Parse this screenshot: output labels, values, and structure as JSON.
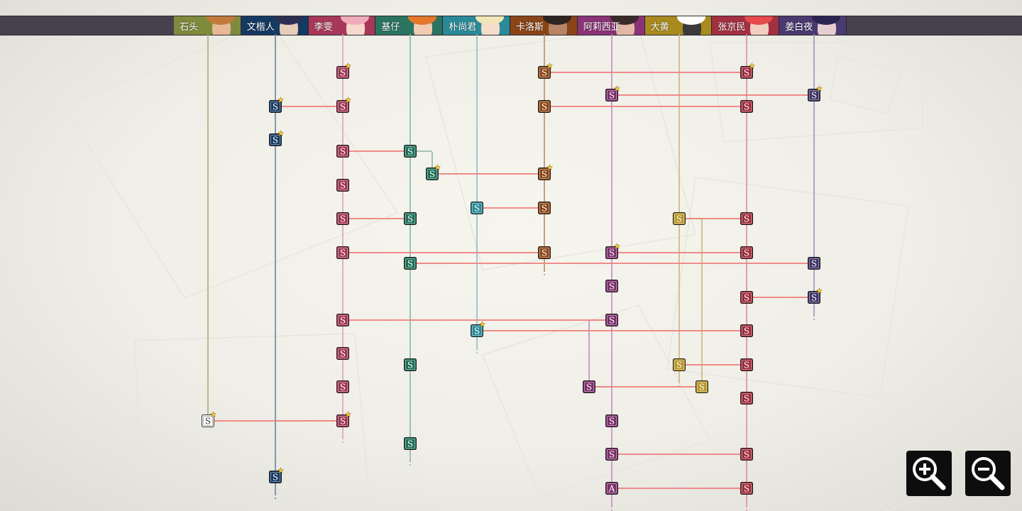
{
  "characters": [
    {
      "id": "c0",
      "name": "石头",
      "tab": "#7f8a3c",
      "line": "#a7ad74",
      "node": "#ffffff",
      "hair": "#c07a3a",
      "skin": "#e6b896"
    },
    {
      "id": "c1",
      "name": "文楷人",
      "tab": "#153a62",
      "line": "#6f8299",
      "node": "#153a62",
      "hair": "#2c2f52",
      "skin": "#e9cdbb"
    },
    {
      "id": "c2",
      "name": "李雯",
      "tab": "#a8385a",
      "line": "#d9a4b3",
      "node": "#9f3553",
      "hair": "#f0aab8",
      "skin": "#f6d8cf"
    },
    {
      "id": "c3",
      "name": "基仔",
      "tab": "#2a7460",
      "line": "#84b8a8",
      "node": "#1f6e57",
      "hair": "#e3772a",
      "skin": "#f0cdb1"
    },
    {
      "id": "c4",
      "name": "朴尚君",
      "tab": "#2a8a97",
      "line": "#8ac0c2",
      "node": "#2a8a97",
      "hair": "#f1e6b8",
      "skin": "#f4dcca"
    },
    {
      "id": "c5",
      "name": "卡洛斯",
      "tab": "#8a4517",
      "line": "#b48e6a",
      "node": "#8a4517",
      "hair": "#2e2420",
      "skin": "#b88466"
    },
    {
      "id": "c6",
      "name": "阿莉西亚",
      "tab": "#8a3477",
      "line": "#c38cbd",
      "node": "#7b2f6c",
      "hair": "#3a2a2a",
      "skin": "#e3b9a6"
    },
    {
      "id": "c7",
      "name": "大黄",
      "tab": "#a88a1e",
      "line": "#cfb478",
      "node": "#b8962a",
      "hair": "#ffffff",
      "skin": "#3b3a3a"
    },
    {
      "id": "c8",
      "name": "张京民",
      "tab": "#a33040",
      "line": "#da8f98",
      "node": "#9c2b3b",
      "hair": "#e64a4a",
      "skin": "#f2cfc0"
    },
    {
      "id": "c9",
      "name": "姜白夜",
      "tab": "#4a3a70",
      "line": "#9a91bb",
      "node": "#3d3366",
      "hair": "#2a2450",
      "skin": "#e6cdd0"
    }
  ],
  "nodes": [
    {
      "c": 2,
      "row": 102,
      "label": "S",
      "star": true
    },
    {
      "c": 5,
      "row": 102,
      "label": "S",
      "star": true
    },
    {
      "c": 8,
      "row": 102,
      "label": "S",
      "star": true
    },
    {
      "c": 6,
      "row": 134,
      "label": "S",
      "star": true
    },
    {
      "c": 9,
      "row": 134,
      "label": "S",
      "star": true
    },
    {
      "c": 1,
      "row": 150,
      "label": "S",
      "star": true
    },
    {
      "c": 2,
      "row": 150,
      "label": "S",
      "star": true
    },
    {
      "c": 5,
      "row": 150,
      "label": "S",
      "star": false
    },
    {
      "c": 8,
      "row": 150,
      "label": "S",
      "star": false
    },
    {
      "c": 1,
      "row": 197,
      "label": "S",
      "star": true
    },
    {
      "c": 2,
      "row": 213,
      "label": "S",
      "star": false
    },
    {
      "c": 3,
      "row": 213,
      "label": "S",
      "star": false
    },
    {
      "c": 3,
      "row": 245,
      "label": "S",
      "star": true,
      "branch": true
    },
    {
      "c": 5,
      "row": 245,
      "label": "S",
      "star": true
    },
    {
      "c": 2,
      "row": 261,
      "label": "S",
      "star": false
    },
    {
      "c": 4,
      "row": 293,
      "label": "S",
      "star": false
    },
    {
      "c": 5,
      "row": 293,
      "label": "S",
      "star": false
    },
    {
      "c": 2,
      "row": 308,
      "label": "S",
      "star": false
    },
    {
      "c": 3,
      "row": 308,
      "label": "S",
      "star": false
    },
    {
      "c": 7,
      "row": 308,
      "label": "S",
      "star": false
    },
    {
      "c": 8,
      "row": 308,
      "label": "S",
      "star": false
    },
    {
      "c": 2,
      "row": 356,
      "label": "S",
      "star": false
    },
    {
      "c": 5,
      "row": 356,
      "label": "S",
      "star": false
    },
    {
      "c": 6,
      "row": 356,
      "label": "S",
      "star": true
    },
    {
      "c": 8,
      "row": 356,
      "label": "S",
      "star": false
    },
    {
      "c": 3,
      "row": 371,
      "label": "S",
      "star": false
    },
    {
      "c": 9,
      "row": 371,
      "label": "S",
      "star": false
    },
    {
      "c": 6,
      "row": 403,
      "label": "S",
      "star": false
    },
    {
      "c": 8,
      "row": 419,
      "label": "S",
      "star": false
    },
    {
      "c": 9,
      "row": 419,
      "label": "S",
      "star": true
    },
    {
      "c": 2,
      "row": 451,
      "label": "S",
      "star": false
    },
    {
      "c": 6,
      "row": 451,
      "label": "S",
      "star": false
    },
    {
      "c": 4,
      "row": 466,
      "label": "S",
      "star": true
    },
    {
      "c": 8,
      "row": 466,
      "label": "S",
      "star": false
    },
    {
      "c": 2,
      "row": 498,
      "label": "S",
      "star": false
    },
    {
      "c": 3,
      "row": 514,
      "label": "S",
      "star": false
    },
    {
      "c": 7,
      "row": 514,
      "label": "S",
      "star": false
    },
    {
      "c": 8,
      "row": 514,
      "label": "S",
      "star": false
    },
    {
      "c": 2,
      "row": 545,
      "label": "S",
      "star": false
    },
    {
      "c": 6,
      "row": 545,
      "label": "S",
      "star": false,
      "branch": true
    },
    {
      "c": 7,
      "row": 545,
      "label": "S",
      "star": false,
      "branch": true
    },
    {
      "c": 8,
      "row": 561,
      "label": "S",
      "star": false
    },
    {
      "c": 0,
      "row": 593,
      "label": "S",
      "star": true
    },
    {
      "c": 2,
      "row": 593,
      "label": "S",
      "star": true
    },
    {
      "c": 6,
      "row": 593,
      "label": "S",
      "star": false
    },
    {
      "c": 3,
      "row": 625,
      "label": "S",
      "star": false
    },
    {
      "c": 6,
      "row": 640,
      "label": "S",
      "star": false
    },
    {
      "c": 8,
      "row": 640,
      "label": "S",
      "star": false
    },
    {
      "c": 1,
      "row": 672,
      "label": "S",
      "star": true
    },
    {
      "c": 6,
      "row": 688,
      "label": "A",
      "star": false
    },
    {
      "c": 8,
      "row": 688,
      "label": "S",
      "star": false
    }
  ],
  "links": [
    {
      "a": 5,
      "b": 8,
      "row": 102
    },
    {
      "a": 6,
      "b": 9,
      "row": 134
    },
    {
      "a": 1,
      "b": 2,
      "row": 150
    },
    {
      "a": 5,
      "b": 8,
      "row": 150
    },
    {
      "a": 2,
      "b": 3,
      "row": 213
    },
    {
      "a": 3,
      "b": 5,
      "row": 245,
      "aBranch": true
    },
    {
      "a": 4,
      "b": 5,
      "row": 293
    },
    {
      "a": 2,
      "b": 3,
      "row": 308
    },
    {
      "a": 7,
      "b": 8,
      "row": 308
    },
    {
      "a": 2,
      "b": 5,
      "row": 356
    },
    {
      "a": 6,
      "b": 8,
      "row": 356
    },
    {
      "a": 3,
      "b": 9,
      "row": 371
    },
    {
      "a": 8,
      "b": 9,
      "row": 419
    },
    {
      "a": 2,
      "b": 6,
      "row": 451
    },
    {
      "a": 4,
      "b": 8,
      "row": 466
    },
    {
      "a": 7,
      "b": 8,
      "row": 514
    },
    {
      "a": 6,
      "b": 7,
      "row": 545,
      "aBranch": true,
      "bBranch": true
    },
    {
      "a": 0,
      "b": 2,
      "row": 593
    },
    {
      "a": 6,
      "b": 8,
      "row": 640
    },
    {
      "a": 6,
      "b": 8,
      "row": 688
    }
  ],
  "branches": [
    {
      "c": 3,
      "fromRow": 213,
      "toRow": 245
    },
    {
      "c": 6,
      "fromRow": 451,
      "toRow": 545
    },
    {
      "c": 7,
      "fromRow": 308,
      "toRow": 545
    }
  ],
  "lines": [
    {
      "c": 0,
      "end": 593,
      "dashed": false
    },
    {
      "c": 1,
      "end": 695,
      "dashed": true
    },
    {
      "c": 2,
      "end": 616,
      "dashed": true
    },
    {
      "c": 3,
      "end": 648,
      "dashed": true
    },
    {
      "c": 4,
      "end": 490,
      "dashed": true
    },
    {
      "c": 5,
      "end": 380,
      "dashed": true
    },
    {
      "c": 6,
      "end": 712,
      "dashed": true
    },
    {
      "c": 7,
      "end": 537,
      "dashed": true
    },
    {
      "c": 8,
      "end": 712,
      "dashed": true
    },
    {
      "c": 9,
      "end": 443,
      "dashed": true
    }
  ],
  "link_color": "#f07d7d",
  "zoom": {
    "in_icon": "zoom-in-icon",
    "out_icon": "zoom-out-icon"
  }
}
